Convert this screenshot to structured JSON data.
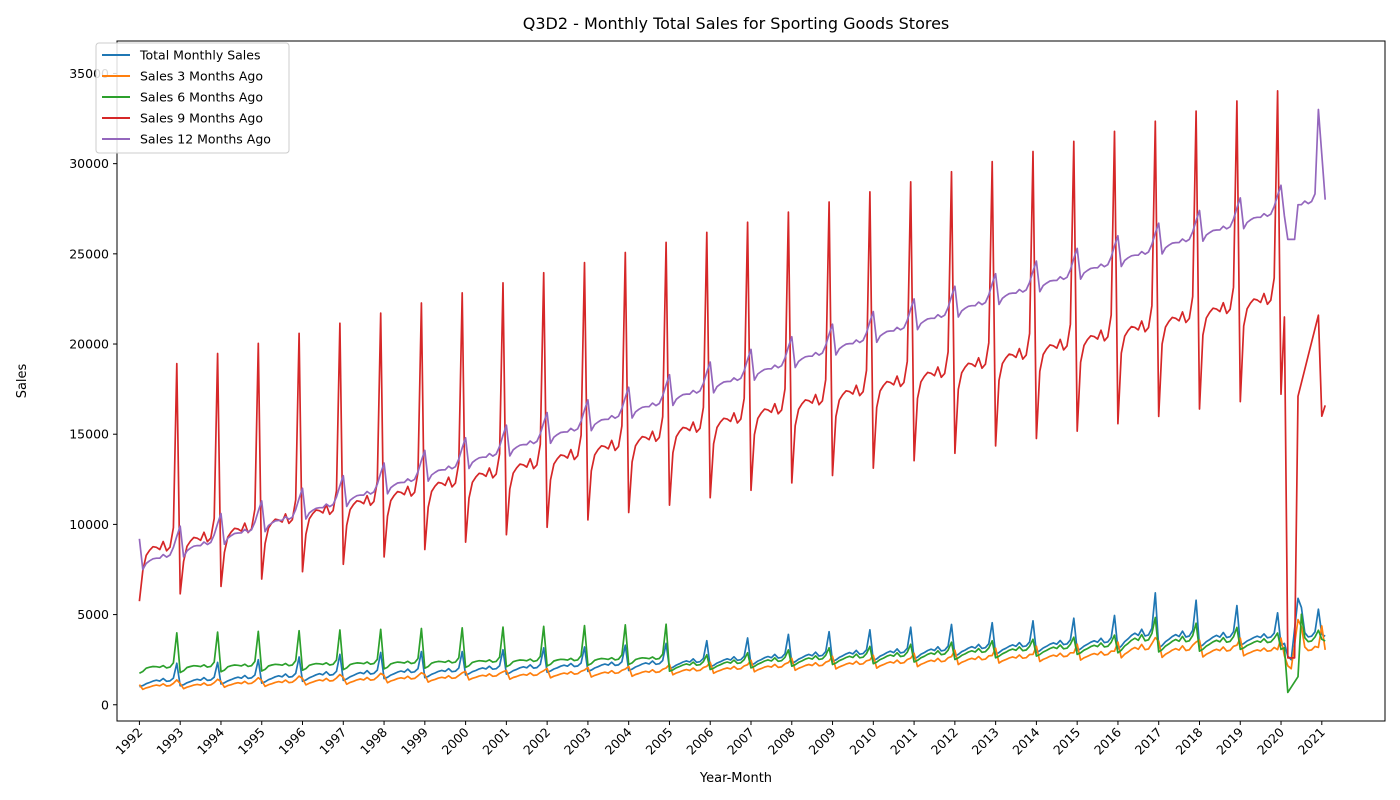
{
  "chart_data": {
    "type": "line",
    "title": "Q3D2 - Monthly Total Sales for Sporting Goods Stores",
    "xlabel": "Year-Month",
    "ylabel": "Sales",
    "x_ticks": [
      "1992",
      "1993",
      "1994",
      "1995",
      "1996",
      "1997",
      "1998",
      "1999",
      "2000",
      "2001",
      "2002",
      "2003",
      "2004",
      "2005",
      "2006",
      "2007",
      "2008",
      "2009",
      "2010",
      "2011",
      "2012",
      "2013",
      "2014",
      "2015",
      "2016",
      "2017",
      "2018",
      "2019",
      "2020",
      "2021"
    ],
    "y_ticks": [
      0,
      5000,
      10000,
      15000,
      20000,
      25000,
      30000,
      35000
    ],
    "xlim": [
      1991.45,
      2022.55
    ],
    "ylim": [
      -900,
      36800
    ],
    "grid": false,
    "legend_position": "upper-left",
    "series": [
      {
        "name": "Total Monthly Sales",
        "color": "#1f77b4"
      },
      {
        "name": "Sales 3 Months Ago",
        "color": "#ff7f0e"
      },
      {
        "name": "Sales 6 Months Ago",
        "color": "#2ca02c"
      },
      {
        "name": "Sales 9 Months Ago",
        "color": "#d62728"
      },
      {
        "name": "Sales 12 Months Ago",
        "color": "#9467bd"
      }
    ],
    "annual": {
      "total_monthly_sales": {
        "year": [
          1992,
          1993,
          1994,
          1995,
          1996,
          1997,
          1998,
          1999,
          2000,
          2001,
          2002,
          2003,
          2004,
          2005,
          2006,
          2007,
          2008,
          2009,
          2010,
          2011,
          2012,
          2013,
          2014,
          2015,
          2016,
          2017,
          2018,
          2019,
          2020,
          2021
        ],
        "jan": [
          1000,
          1050,
          1150,
          1200,
          1300,
          1350,
          1450,
          1500,
          1650,
          1700,
          1800,
          1850,
          1900,
          2000,
          2100,
          2200,
          2300,
          2400,
          2450,
          2550,
          2700,
          2800,
          2900,
          3000,
          3100,
          3150,
          3200,
          3300,
          3300,
          3900
        ],
        "dec": [
          2300,
          2350,
          2500,
          2650,
          2800,
          2900,
          2950,
          2950,
          3050,
          3150,
          3200,
          3300,
          3400,
          3550,
          3700,
          3900,
          4050,
          4150,
          4300,
          4450,
          4550,
          4650,
          4800,
          4950,
          6200,
          5800,
          5500,
          5100,
          5300,
          6800
        ],
        "pandemic_min": 2500
      }
    }
  }
}
